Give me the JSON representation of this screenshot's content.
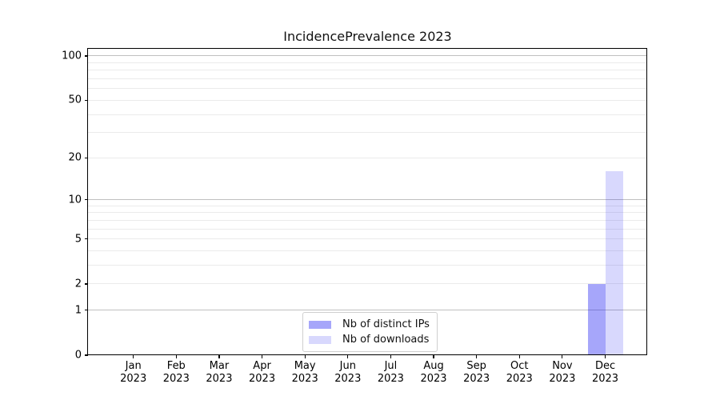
{
  "chart_data": {
    "type": "bar",
    "title": "IncidencePrevalence 2023",
    "categories": [
      "Jan 2023",
      "Feb 2023",
      "Mar 2023",
      "Apr 2023",
      "May 2023",
      "Jun 2023",
      "Jul 2023",
      "Aug 2023",
      "Sep 2023",
      "Oct 2023",
      "Nov 2023",
      "Dec 2023"
    ],
    "x_tick_months": [
      "Jan",
      "Feb",
      "Mar",
      "Apr",
      "May",
      "Jun",
      "Jul",
      "Aug",
      "Sep",
      "Oct",
      "Nov",
      "Dec"
    ],
    "x_tick_year": "2023",
    "series": [
      {
        "name": "Nb of distinct IPs",
        "color": "rgba(22,22,242,0.38)",
        "solid_color": "#a8a8f2",
        "values": [
          0,
          0,
          0,
          0,
          0,
          0,
          0,
          0,
          0,
          0,
          0,
          2
        ]
      },
      {
        "name": "Nb of downloads",
        "color": "rgba(22,22,242,0.17)",
        "solid_color": "#d9d9f8",
        "values": [
          0,
          0,
          0,
          0,
          0,
          0,
          0,
          0,
          0,
          0,
          0,
          16
        ]
      }
    ],
    "y_axis": {
      "scale": "log1p",
      "tick_values": [
        0,
        1,
        2,
        5,
        10,
        20,
        50,
        100
      ],
      "grid_major_values": [
        1,
        10,
        100
      ],
      "grid_minor_values": [
        2,
        3,
        4,
        5,
        6,
        7,
        8,
        9,
        20,
        30,
        40,
        50,
        60,
        70,
        80,
        90
      ],
      "ylim": [
        0,
        112
      ]
    },
    "legend": {
      "position": "lower center"
    },
    "colors": {
      "grid_major": "#c0c0c0",
      "grid_minor": "#ebebeb",
      "axis": "#000000",
      "background": "#ffffff"
    }
  }
}
